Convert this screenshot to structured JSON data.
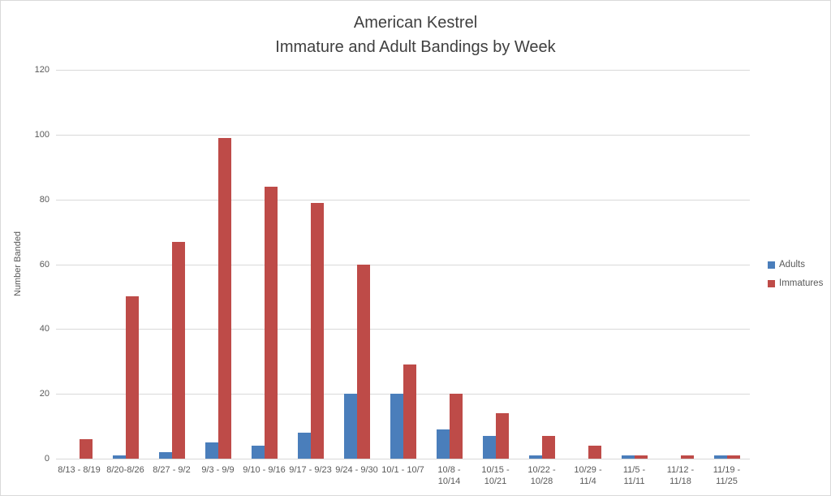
{
  "chart_data": {
    "type": "bar",
    "title": "American Kestrel",
    "subtitle": "Immature and Adult Bandings by Week",
    "xlabel": "",
    "ylabel": "Number Banded",
    "ylim": [
      0,
      120
    ],
    "yticks": [
      0,
      20,
      40,
      60,
      80,
      100,
      120
    ],
    "grid": "horizontal",
    "gridline_color": "#d9d9d9",
    "legend_position": "right",
    "label_wrap_from_index": 8,
    "categories": [
      "8/13 - 8/19",
      "8/20-8/26",
      "8/27 - 9/2",
      "9/3 - 9/9",
      "9/10 - 9/16",
      "9/17 - 9/23",
      "9/24 - 9/30",
      "10/1 - 10/7",
      "10/8 - 10/14",
      "10/15 - 10/21",
      "10/22 - 10/28",
      "10/29 - 11/4",
      "11/5 - 11/11",
      "11/12 - 11/18",
      "11/19 - 11/25"
    ],
    "series": [
      {
        "name": "Adults",
        "color": "#4a7ebb",
        "values": [
          0,
          1,
          2,
          5,
          4,
          8,
          20,
          20,
          9,
          7,
          1,
          0,
          1,
          0,
          1
        ]
      },
      {
        "name": "Immatures",
        "color": "#be4b48",
        "values": [
          6,
          50,
          67,
          99,
          84,
          79,
          60,
          29,
          20,
          14,
          7,
          4,
          1,
          1,
          1
        ]
      }
    ]
  },
  "colors": {
    "title_text": "#3f3f3f",
    "axis_text": "#595959",
    "frame_border": "#d9d9d9"
  }
}
